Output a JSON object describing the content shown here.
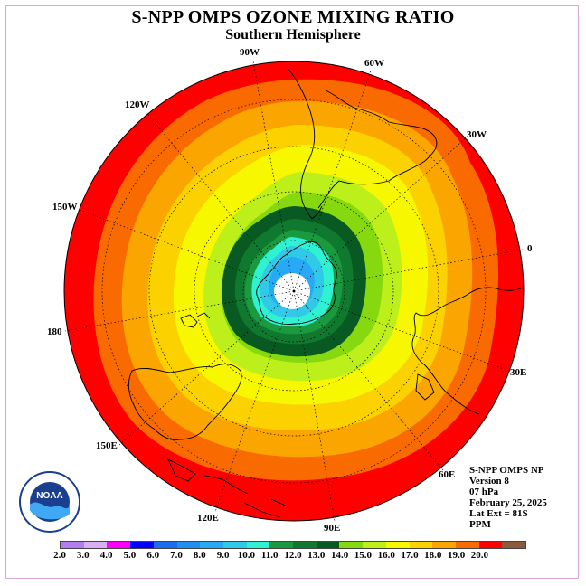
{
  "header": {
    "title": "S-NPP OMPS OZONE MIXING RATIO",
    "subtitle": "Southern Hemisphere"
  },
  "longitude_labels": [
    "90W",
    "60W",
    "30W",
    "0",
    "30E",
    "60E",
    "90E",
    "120E",
    "150E",
    "180",
    "150W",
    "120W"
  ],
  "info": {
    "source": "S-NPP OMPS NP",
    "version": "Version 8",
    "level": "07 hPa",
    "date": "February 25, 2025",
    "lat_ext": "Lat Ext = 81S",
    "units": "PPM"
  },
  "colorbar": {
    "ticks": [
      "2.0",
      "3.0",
      "4.0",
      "5.0",
      "6.0",
      "7.0",
      "8.0",
      "9.0",
      "10.0",
      "11.0",
      "12.0",
      "13.0",
      "14.0",
      "15.0",
      "16.0",
      "17.0",
      "18.0",
      "19.0",
      "20.0"
    ],
    "colors": [
      "#b57cf0",
      "#d8b0f2",
      "#ff00ff",
      "#0000ff",
      "#1a6cf0",
      "#1f8ff2",
      "#27aaf5",
      "#30c9e8",
      "#2ef2d2",
      "#199a3e",
      "#0f7a2f",
      "#095a22",
      "#86d90e",
      "#bdf01a",
      "#f7f700",
      "#fbd200",
      "#fba500",
      "#f96a00",
      "#ff0000",
      "#8b5a3c"
    ]
  },
  "contour_colors": {
    "center": "#ffffff",
    "blue": "#27aaf5",
    "cyan": "#30c9e8",
    "aqua": "#2ef2d2",
    "green1": "#199a3e",
    "green2": "#0f7a2f",
    "lightgreen": "#86d90e",
    "yellowgreen": "#bdf01a",
    "yellow": "#f7f700",
    "gold": "#fbd200",
    "orange": "#fba500",
    "darkorange": "#f96a00",
    "red": "#ff0000"
  },
  "logo": {
    "text": "NOAA"
  }
}
